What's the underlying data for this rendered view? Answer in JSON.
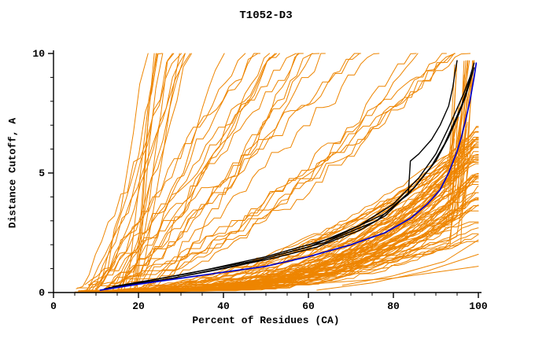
{
  "chart_data": {
    "type": "line",
    "title": "T1052-D3",
    "xlabel": "Percent of Residues (CA)",
    "ylabel": "Distance Cutoff, A",
    "xlim": [
      0,
      100
    ],
    "ylim": [
      0,
      10
    ],
    "x_ticks": [
      0,
      20,
      40,
      60,
      80,
      100
    ],
    "y_ticks": [
      0,
      5,
      10
    ],
    "x_minor_tick_step": 5,
    "y_minor_tick_step": 1,
    "grid": false,
    "legend": null,
    "colors": {
      "ensemble": "#ee8500",
      "reference": "#000000",
      "highlight": "#0000cc",
      "axis": "#000000",
      "background": "#ffffff"
    },
    "ensemble_orange": {
      "count": 120,
      "seed": 11,
      "start_x_range": [
        5,
        21
      ],
      "steep_fraction": 0.38,
      "steep_top_x_range": [
        16,
        99
      ],
      "shallow_end_y_range": [
        2.2,
        7.0
      ],
      "end_spike_fraction": 0.35,
      "spike_top_y_max": 9.7
    },
    "extra_low_curves_orange": [
      [
        [
          62,
          0.1
        ],
        [
          75,
          0.4
        ],
        [
          88,
          0.9
        ],
        [
          100,
          1.6
        ]
      ],
      [
        [
          68,
          0.3
        ],
        [
          80,
          0.7
        ],
        [
          92,
          1.3
        ],
        [
          100,
          2.2
        ]
      ],
      [
        [
          8,
          0.05
        ],
        [
          20,
          0.1
        ],
        [
          40,
          0.2
        ],
        [
          60,
          0.35
        ],
        [
          80,
          0.6
        ],
        [
          100,
          1.1
        ]
      ]
    ],
    "reference_curves_black": [
      [
        [
          12,
          0.15
        ],
        [
          25,
          0.5
        ],
        [
          40,
          1.0
        ],
        [
          52,
          1.45
        ],
        [
          62,
          1.9
        ],
        [
          72,
          2.6
        ],
        [
          78,
          3.2
        ],
        [
          82,
          3.9
        ],
        [
          83.5,
          4.1
        ],
        [
          84,
          5.5
        ],
        [
          86,
          5.8
        ],
        [
          89,
          6.4
        ],
        [
          91,
          7.0
        ],
        [
          93,
          7.8
        ],
        [
          94,
          8.6
        ],
        [
          94.5,
          9.2
        ],
        [
          95,
          9.7
        ]
      ],
      [
        [
          13,
          0.2
        ],
        [
          28,
          0.6
        ],
        [
          45,
          1.2
        ],
        [
          60,
          1.9
        ],
        [
          72,
          2.8
        ],
        [
          80,
          3.7
        ],
        [
          86,
          4.8
        ],
        [
          90,
          5.8
        ],
        [
          93,
          6.9
        ],
        [
          95,
          7.7
        ],
        [
          96.5,
          8.3
        ],
        [
          98,
          9.0
        ],
        [
          99,
          9.6
        ]
      ],
      [
        [
          12,
          0.15
        ],
        [
          30,
          0.75
        ],
        [
          48,
          1.35
        ],
        [
          64,
          2.1
        ],
        [
          76,
          3.0
        ],
        [
          84,
          4.2
        ],
        [
          89,
          5.3
        ],
        [
          92,
          6.2
        ],
        [
          94,
          7.0
        ],
        [
          96,
          7.8
        ],
        [
          97.5,
          8.6
        ],
        [
          98.5,
          9.3
        ]
      ],
      [
        [
          14,
          0.25
        ],
        [
          32,
          0.8
        ],
        [
          50,
          1.5
        ],
        [
          66,
          2.3
        ],
        [
          78,
          3.3
        ],
        [
          85,
          4.4
        ],
        [
          90,
          5.5
        ],
        [
          93,
          6.5
        ],
        [
          95.5,
          7.5
        ],
        [
          97,
          8.2
        ],
        [
          98,
          8.8
        ],
        [
          99,
          9.4
        ]
      ]
    ],
    "highlight_curve_blue": [
      [
        11,
        0.1
      ],
      [
        20,
        0.35
      ],
      [
        30,
        0.6
      ],
      [
        40,
        0.85
      ],
      [
        50,
        1.1
      ],
      [
        60,
        1.5
      ],
      [
        70,
        2.0
      ],
      [
        78,
        2.5
      ],
      [
        84,
        3.1
      ],
      [
        88,
        3.7
      ],
      [
        91,
        4.3
      ],
      [
        93,
        5.0
      ],
      [
        95,
        5.9
      ],
      [
        96,
        6.5
      ],
      [
        97,
        7.2
      ],
      [
        98,
        8.0
      ],
      [
        99,
        9.0
      ],
      [
        99.5,
        9.6
      ]
    ]
  }
}
